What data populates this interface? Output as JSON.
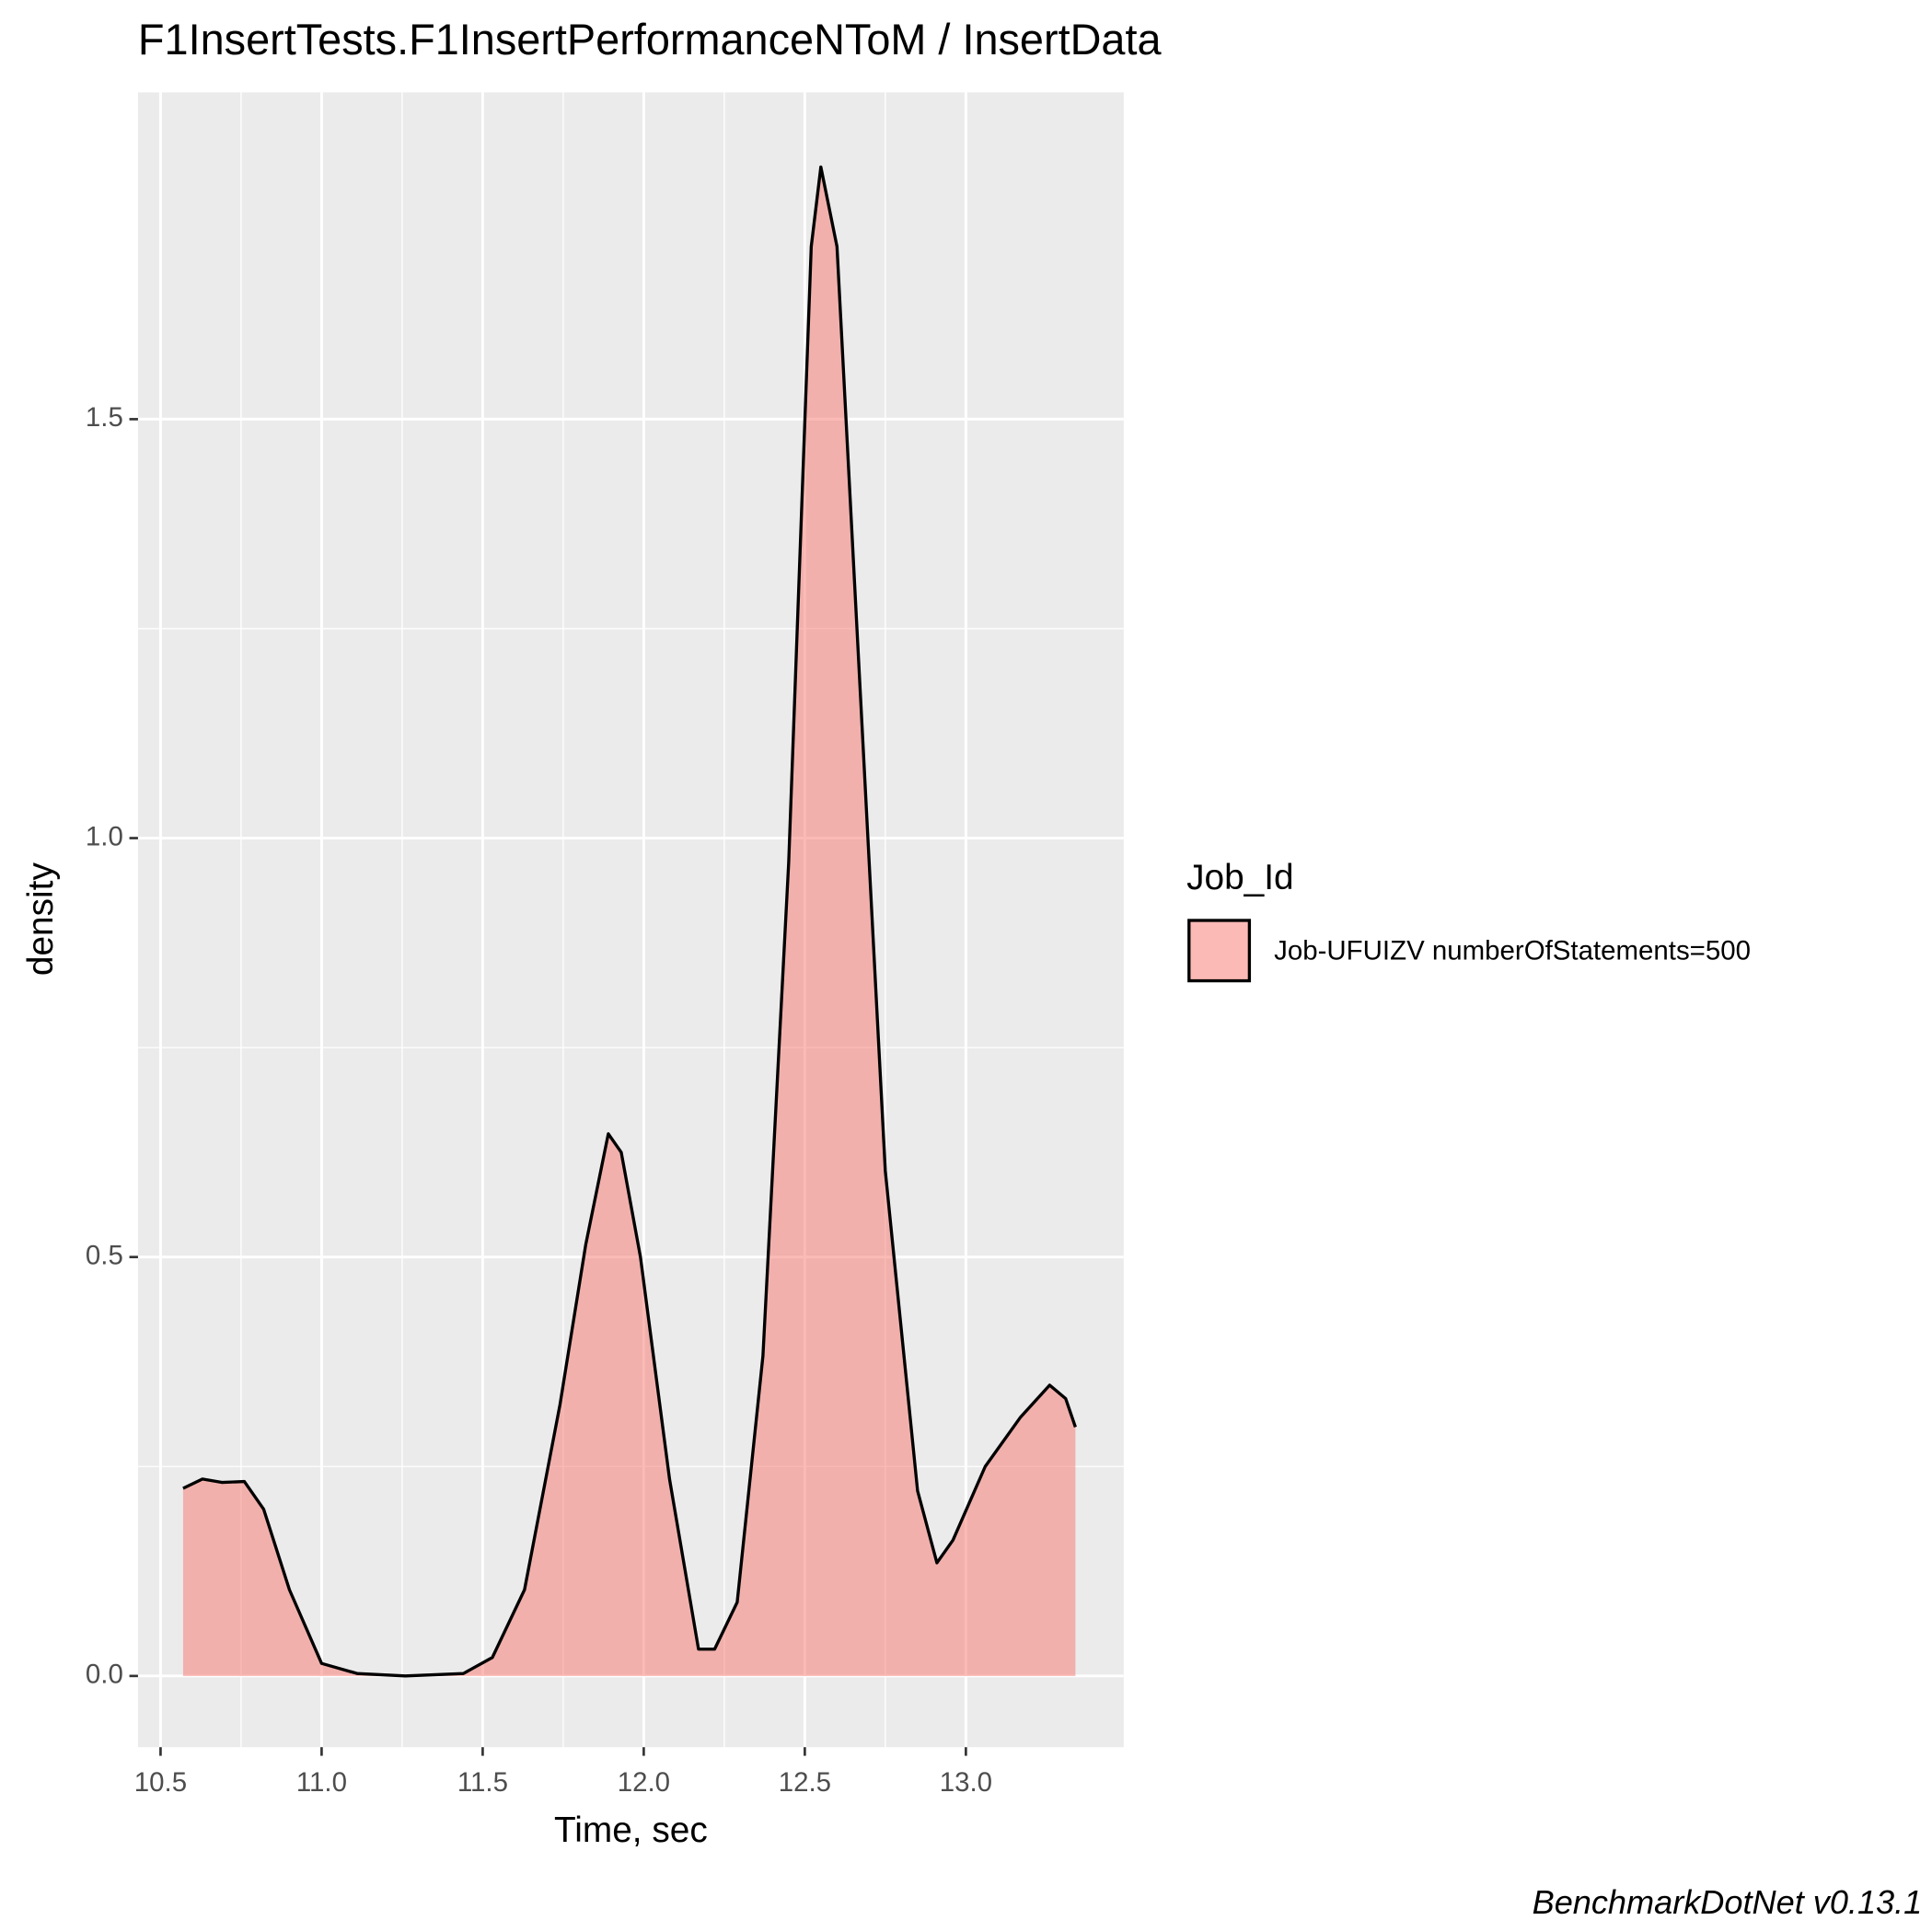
{
  "chart_data": {
    "type": "density",
    "title": "F1InsertTests.F1InsertPerformanceNToM / InsertData",
    "x_label": "Time, sec",
    "y_label": "density",
    "legend_title": "Job_Id",
    "legend": "right",
    "caption": "BenchmarkDotNet v0.13.1",
    "x": [
      10.57,
      10.63,
      10.69,
      10.76,
      10.82,
      10.9,
      11.0,
      11.11,
      11.26,
      11.44,
      11.53,
      11.63,
      11.74,
      11.82,
      11.89,
      11.93,
      11.99,
      12.08,
      12.17,
      12.22,
      12.29,
      12.37,
      12.45,
      12.52,
      12.55,
      12.6,
      12.68,
      12.75,
      12.85,
      12.91,
      12.96,
      13.06,
      13.17,
      13.26,
      13.31,
      13.34
    ],
    "series": [
      {
        "name": "Job-UFUIZV numberOfStatements=500",
        "color": "#F8766D",
        "values": [
          0.224,
          0.235,
          0.231,
          0.232,
          0.199,
          0.103,
          0.015,
          0.003,
          0,
          0.003,
          0.022,
          0.103,
          0.324,
          0.515,
          0.647,
          0.625,
          0.5,
          0.235,
          0.032,
          0.032,
          0.088,
          0.382,
          0.971,
          1.706,
          1.801,
          1.706,
          1.118,
          0.603,
          0.221,
          0.135,
          0.162,
          0.25,
          0.309,
          0.347,
          0.331,
          0.297
        ]
      }
    ],
    "xlim": [
      10.43,
      13.49
    ],
    "ylim": [
      -0.085,
      1.89
    ],
    "xticks": [
      10.5,
      {
        "value": 11,
        "label": "11.0"
      },
      11.5,
      {
        "value": 12,
        "label": "12.0"
      },
      12.5,
      {
        "value": 13,
        "label": "13.0"
      }
    ],
    "yticks": [
      {
        "value": 0,
        "label": "0.0"
      },
      0.5,
      {
        "value": 1,
        "label": "1.0"
      },
      1.5
    ],
    "grid": true
  }
}
